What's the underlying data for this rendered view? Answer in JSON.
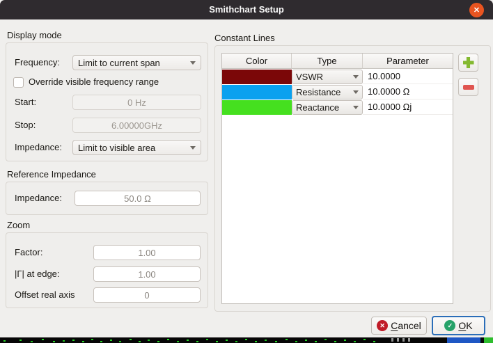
{
  "window": {
    "title": "Smithchart Setup"
  },
  "icons": {
    "close": "✕",
    "cancel": "✕",
    "ok": "✓"
  },
  "colors": {
    "titlebar": "#2f2b2f",
    "close_button": "#e95420",
    "plus_icon": "#84b930",
    "minus_icon": "#e05550",
    "cancel_icon": "#c01c28",
    "ok_icon": "#26a269",
    "ok_focus_border": "#2a6db8"
  },
  "display_mode": {
    "section_label": "Display mode",
    "frequency_label": "Frequency:",
    "frequency_value": "Limit to current span",
    "override_label": "Override visible frequency range",
    "override_checked": false,
    "start_label": "Start:",
    "start_value": "0 Hz",
    "stop_label": "Stop:",
    "stop_value": "6.00000GHz",
    "impedance_label": "Impedance:",
    "impedance_value": "Limit to visible area"
  },
  "reference_impedance": {
    "section_label": "Reference Impedance",
    "impedance_label": "Impedance:",
    "impedance_value": "50.0 Ω"
  },
  "zoom": {
    "section_label": "Zoom",
    "factor_label": "Factor:",
    "factor_value": "1.00",
    "gamma_label": "|Γ| at edge:",
    "gamma_value": "1.00",
    "offset_label": "Offset real axis",
    "offset_value": "0"
  },
  "constant_lines": {
    "section_label": "Constant Lines",
    "columns": [
      "Color",
      "Type",
      "Parameter"
    ],
    "rows": [
      {
        "color": "#7b0708",
        "type": "VSWR",
        "parameter": "10.0000"
      },
      {
        "color": "#0aa1ef",
        "type": "Resistance",
        "parameter": "10.0000 Ω"
      },
      {
        "color": "#45e01f",
        "type": "Reactance",
        "parameter": "10.0000 Ωj"
      }
    ]
  },
  "actions": {
    "cancel_label": "Cancel",
    "ok_label": "OK"
  }
}
